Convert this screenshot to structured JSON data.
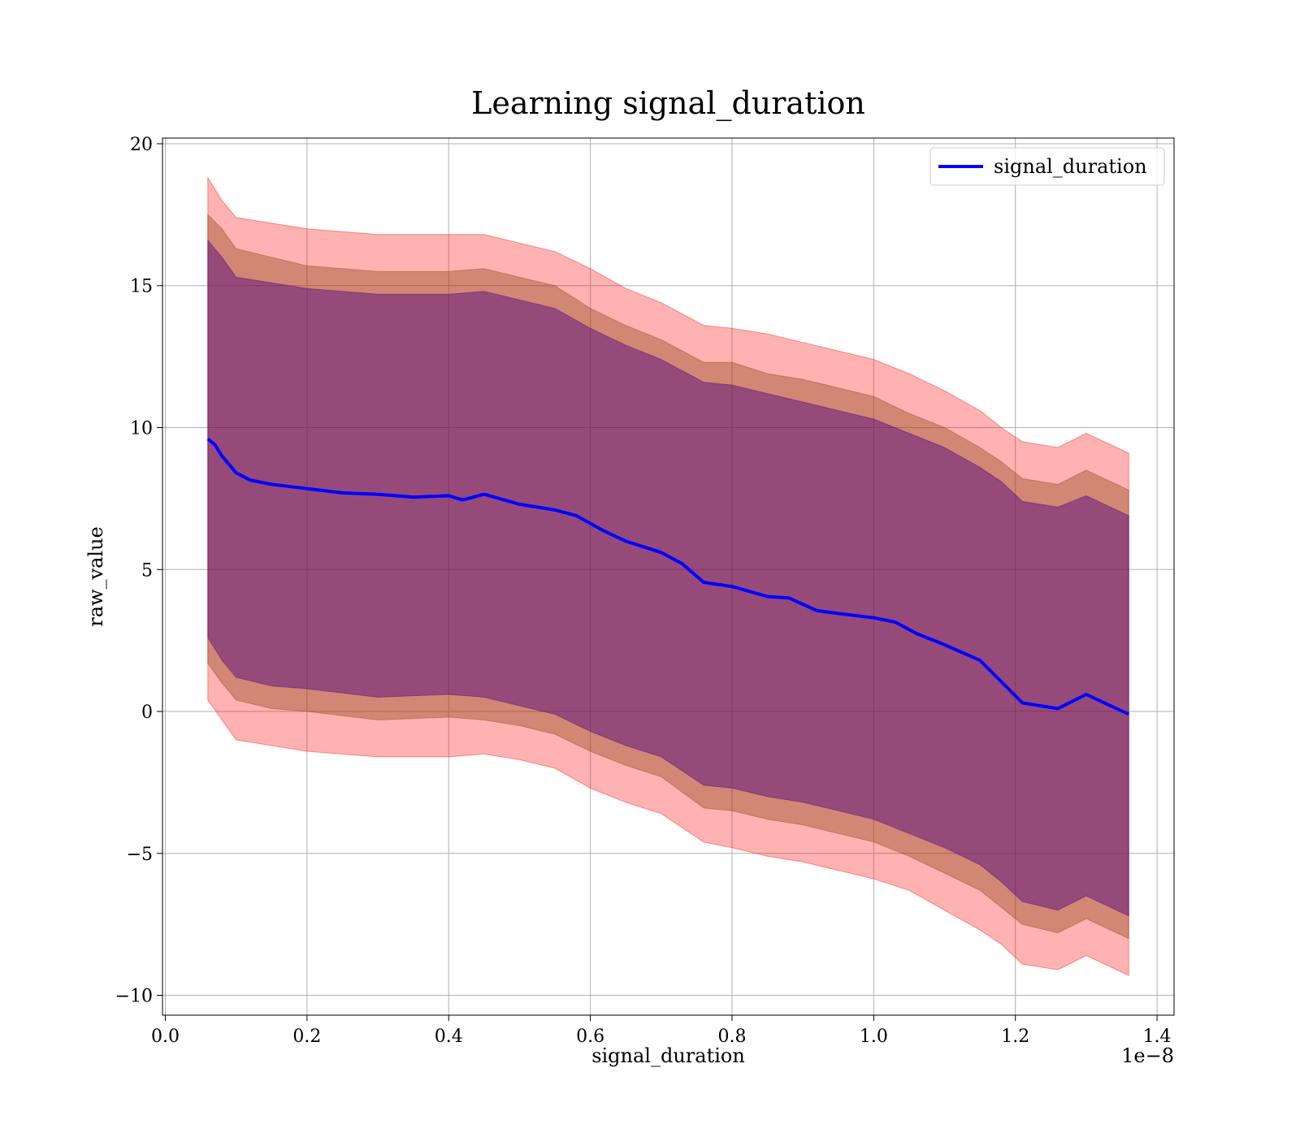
{
  "chart_data": {
    "type": "line",
    "title": "Learning signal_duration",
    "xlabel": "signal_duration",
    "ylabel": "raw_value",
    "x_offset_label": "1e−8",
    "xlim": [
      -0.004,
      1.424
    ],
    "ylim": [
      -10.7,
      20.2
    ],
    "x_ticks": [
      0.0,
      0.2,
      0.4,
      0.6,
      0.8,
      1.0,
      1.2,
      1.4
    ],
    "x_tick_labels": [
      "0.0",
      "0.2",
      "0.4",
      "0.6",
      "0.8",
      "1.0",
      "1.2",
      "1.4"
    ],
    "y_ticks": [
      -10,
      -5,
      0,
      5,
      10,
      15,
      20
    ],
    "y_tick_labels": [
      "−10",
      "−5",
      "0",
      "5",
      "10",
      "15",
      "20"
    ],
    "grid": true,
    "legend_position": "top-right",
    "colors": {
      "line": "#0000ff",
      "outer_band": "#ff0000",
      "middle_band": "#8b4513",
      "inner_band": "#4b0082",
      "grid": "#b0b0b0"
    },
    "series": [
      {
        "name": "signal_duration",
        "x": [
          0.06,
          0.07,
          0.08,
          0.09,
          0.1,
          0.12,
          0.15,
          0.2,
          0.25,
          0.3,
          0.35,
          0.4,
          0.42,
          0.45,
          0.5,
          0.55,
          0.58,
          0.62,
          0.65,
          0.7,
          0.73,
          0.76,
          0.8,
          0.85,
          0.88,
          0.92,
          0.95,
          1.0,
          1.03,
          1.06,
          1.1,
          1.15,
          1.18,
          1.21,
          1.26,
          1.3,
          1.36
        ],
        "y": [
          9.6,
          9.4,
          9.0,
          8.7,
          8.4,
          8.15,
          8.0,
          7.85,
          7.7,
          7.65,
          7.55,
          7.6,
          7.45,
          7.65,
          7.3,
          7.1,
          6.9,
          6.35,
          6.0,
          5.6,
          5.2,
          4.55,
          4.4,
          4.05,
          4.0,
          3.55,
          3.45,
          3.3,
          3.15,
          2.75,
          2.35,
          1.8,
          1.05,
          0.3,
          0.1,
          0.6,
          -0.1
        ]
      }
    ],
    "bands": [
      {
        "x": [
          0.06,
          0.08,
          0.1,
          0.15,
          0.2,
          0.3,
          0.4,
          0.45,
          0.5,
          0.55,
          0.6,
          0.65,
          0.7,
          0.76,
          0.8,
          0.85,
          0.9,
          0.95,
          1.0,
          1.05,
          1.1,
          1.15,
          1.18,
          1.21,
          1.26,
          1.3,
          1.36
        ],
        "upper": [
          18.8,
          18.0,
          17.4,
          17.2,
          17.0,
          16.8,
          16.8,
          16.8,
          16.5,
          16.2,
          15.6,
          14.9,
          14.4,
          13.6,
          13.5,
          13.3,
          13.0,
          12.7,
          12.4,
          11.9,
          11.3,
          10.6,
          10.0,
          9.5,
          9.3,
          9.8,
          9.1
        ],
        "lower": [
          0.4,
          -0.3,
          -1.0,
          -1.2,
          -1.4,
          -1.6,
          -1.6,
          -1.5,
          -1.7,
          -2.0,
          -2.7,
          -3.2,
          -3.6,
          -4.6,
          -4.8,
          -5.1,
          -5.3,
          -5.6,
          -5.9,
          -6.3,
          -7.0,
          -7.7,
          -8.2,
          -8.9,
          -9.1,
          -8.6,
          -9.3
        ]
      },
      {
        "x": [
          0.06,
          0.08,
          0.1,
          0.15,
          0.2,
          0.3,
          0.4,
          0.45,
          0.5,
          0.55,
          0.6,
          0.65,
          0.7,
          0.76,
          0.8,
          0.85,
          0.9,
          0.95,
          1.0,
          1.05,
          1.1,
          1.15,
          1.18,
          1.21,
          1.26,
          1.3,
          1.36
        ],
        "upper": [
          17.5,
          17.0,
          16.3,
          16.0,
          15.7,
          15.5,
          15.5,
          15.6,
          15.3,
          15.0,
          14.2,
          13.6,
          13.1,
          12.3,
          12.3,
          11.9,
          11.7,
          11.4,
          11.1,
          10.5,
          10.0,
          9.3,
          8.8,
          8.2,
          8.0,
          8.5,
          7.8
        ],
        "lower": [
          1.7,
          1.0,
          0.4,
          0.1,
          0.0,
          -0.3,
          -0.2,
          -0.3,
          -0.5,
          -0.8,
          -1.4,
          -1.9,
          -2.3,
          -3.4,
          -3.5,
          -3.8,
          -4.0,
          -4.3,
          -4.6,
          -5.1,
          -5.7,
          -6.3,
          -6.9,
          -7.5,
          -7.8,
          -7.3,
          -8.0
        ]
      },
      {
        "x": [
          0.06,
          0.08,
          0.1,
          0.15,
          0.2,
          0.3,
          0.4,
          0.45,
          0.5,
          0.55,
          0.6,
          0.65,
          0.7,
          0.76,
          0.8,
          0.85,
          0.9,
          0.95,
          1.0,
          1.05,
          1.1,
          1.15,
          1.18,
          1.21,
          1.26,
          1.3,
          1.36
        ],
        "upper": [
          16.6,
          16.0,
          15.3,
          15.1,
          14.9,
          14.7,
          14.7,
          14.8,
          14.5,
          14.2,
          13.5,
          12.9,
          12.4,
          11.6,
          11.5,
          11.2,
          10.9,
          10.6,
          10.3,
          9.8,
          9.3,
          8.6,
          8.1,
          7.4,
          7.2,
          7.6,
          6.9
        ],
        "lower": [
          2.6,
          1.8,
          1.2,
          0.9,
          0.8,
          0.5,
          0.6,
          0.5,
          0.2,
          -0.1,
          -0.7,
          -1.2,
          -1.6,
          -2.6,
          -2.7,
          -3.0,
          -3.2,
          -3.5,
          -3.8,
          -4.3,
          -4.8,
          -5.4,
          -6.0,
          -6.7,
          -7.0,
          -6.5,
          -7.2
        ]
      }
    ]
  }
}
